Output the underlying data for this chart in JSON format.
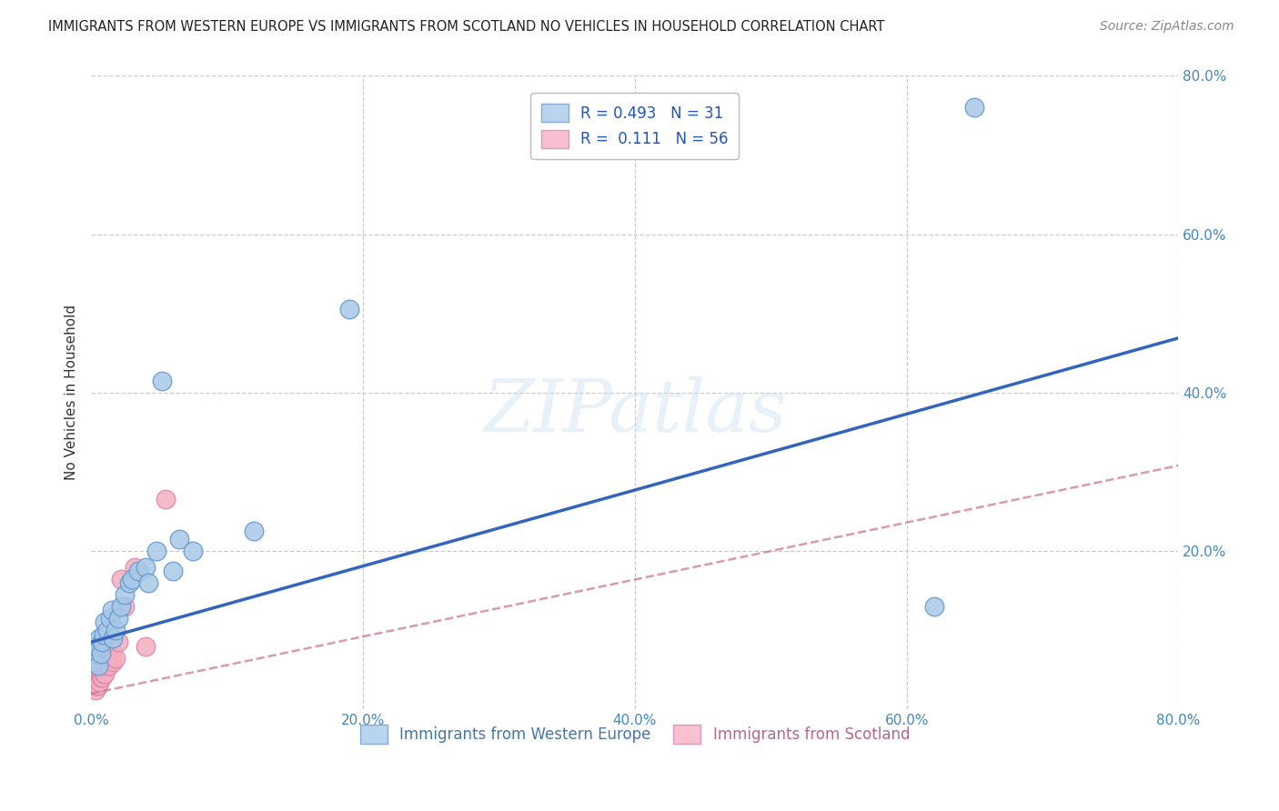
{
  "title": "IMMIGRANTS FROM WESTERN EUROPE VS IMMIGRANTS FROM SCOTLAND NO VEHICLES IN HOUSEHOLD CORRELATION CHART",
  "source": "Source: ZipAtlas.com",
  "ylabel": "No Vehicles in Household",
  "xlim": [
    0.0,
    0.8
  ],
  "ylim": [
    0.0,
    0.8
  ],
  "xtick_labels": [
    "0.0%",
    "",
    "20.0%",
    "",
    "40.0%",
    "",
    "60.0%",
    "",
    "80.0%"
  ],
  "xtick_vals": [
    0.0,
    0.1,
    0.2,
    0.3,
    0.4,
    0.5,
    0.6,
    0.7,
    0.8
  ],
  "ytick_labels": [
    "20.0%",
    "40.0%",
    "60.0%",
    "80.0%"
  ],
  "ytick_vals": [
    0.2,
    0.4,
    0.6,
    0.8
  ],
  "blue_R": 0.493,
  "blue_N": 31,
  "pink_R": 0.111,
  "pink_N": 56,
  "blue_line_intercept": 0.085,
  "blue_line_slope": 0.48,
  "pink_line_intercept": 0.02,
  "pink_line_slope": 0.36,
  "blue_color": "#a8c8e8",
  "blue_edge": "#6699cc",
  "pink_color": "#f4aec0",
  "pink_edge": "#dd88aa",
  "blue_line_color": "#3366bb",
  "pink_line_color": "#cc7799",
  "watermark": "ZIPatlas",
  "background_color": "#ffffff",
  "grid_color": "#cccccc",
  "blue_x": [
    0.002,
    0.003,
    0.004,
    0.005,
    0.006,
    0.007,
    0.008,
    0.009,
    0.01,
    0.012,
    0.014,
    0.015,
    0.016,
    0.018,
    0.02,
    0.022,
    0.025,
    0.028,
    0.03,
    0.035,
    0.04,
    0.042,
    0.048,
    0.052,
    0.06,
    0.065,
    0.075,
    0.12,
    0.19,
    0.62,
    0.65
  ],
  "blue_y": [
    0.06,
    0.07,
    0.08,
    0.055,
    0.09,
    0.07,
    0.085,
    0.095,
    0.11,
    0.1,
    0.115,
    0.125,
    0.09,
    0.1,
    0.115,
    0.13,
    0.145,
    0.16,
    0.165,
    0.175,
    0.18,
    0.16,
    0.2,
    0.415,
    0.175,
    0.215,
    0.2,
    0.225,
    0.505,
    0.13,
    0.76
  ],
  "pink_x": [
    0.001,
    0.001,
    0.001,
    0.001,
    0.001,
    0.002,
    0.002,
    0.002,
    0.002,
    0.002,
    0.002,
    0.003,
    0.003,
    0.003,
    0.003,
    0.003,
    0.003,
    0.004,
    0.004,
    0.004,
    0.004,
    0.004,
    0.005,
    0.005,
    0.005,
    0.005,
    0.005,
    0.006,
    0.006,
    0.006,
    0.006,
    0.007,
    0.007,
    0.007,
    0.008,
    0.008,
    0.008,
    0.009,
    0.009,
    0.01,
    0.01,
    0.01,
    0.011,
    0.012,
    0.012,
    0.013,
    0.014,
    0.015,
    0.016,
    0.018,
    0.02,
    0.022,
    0.025,
    0.032,
    0.04,
    0.055
  ],
  "pink_y": [
    0.04,
    0.05,
    0.055,
    0.06,
    0.065,
    0.03,
    0.04,
    0.05,
    0.06,
    0.07,
    0.08,
    0.025,
    0.035,
    0.045,
    0.055,
    0.06,
    0.075,
    0.03,
    0.04,
    0.055,
    0.065,
    0.075,
    0.03,
    0.04,
    0.05,
    0.065,
    0.075,
    0.035,
    0.05,
    0.06,
    0.075,
    0.04,
    0.055,
    0.07,
    0.04,
    0.055,
    0.07,
    0.045,
    0.06,
    0.045,
    0.06,
    0.075,
    0.06,
    0.055,
    0.07,
    0.055,
    0.065,
    0.075,
    0.06,
    0.065,
    0.085,
    0.165,
    0.13,
    0.18,
    0.08,
    0.265
  ]
}
